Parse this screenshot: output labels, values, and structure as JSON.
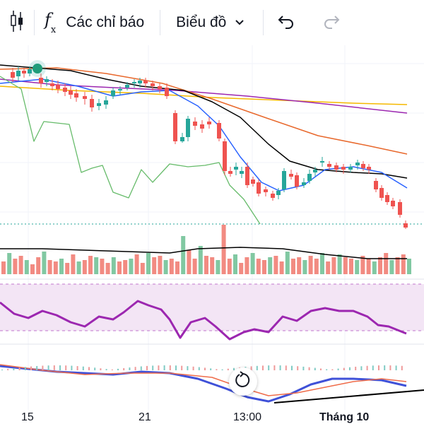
{
  "toolbar": {
    "indicators_label": "Các chỉ báo",
    "chart_label": "Biểu đồ",
    "icons": {
      "candle": "candlestick-icon",
      "fx": "function-icon",
      "chevron": "chevron-down-icon",
      "undo": "undo-icon",
      "redo": "redo-icon"
    }
  },
  "xaxis": {
    "labels": [
      "15",
      "21",
      "13:00",
      "Tháng 10"
    ]
  },
  "chart_data": {
    "type": "candlestick",
    "colors": {
      "up": "#26a69a",
      "down": "#ef5350",
      "ma_black": "#000000",
      "ma_blue": "#2962ff",
      "ma_orange": "#e8682c",
      "ma_purple": "#9c27b0",
      "ma_yellow": "#f5b800",
      "rsi_band": "#f3e5f5",
      "rsi_line": "#9c27b0",
      "macd": "#3f51d8",
      "signal": "#ef6c4a",
      "volume_up": "#81c8a2",
      "volume_down": "#f28b82"
    },
    "marker_color": "#26a69a",
    "reset_icon": "reset-zoom-icon"
  }
}
